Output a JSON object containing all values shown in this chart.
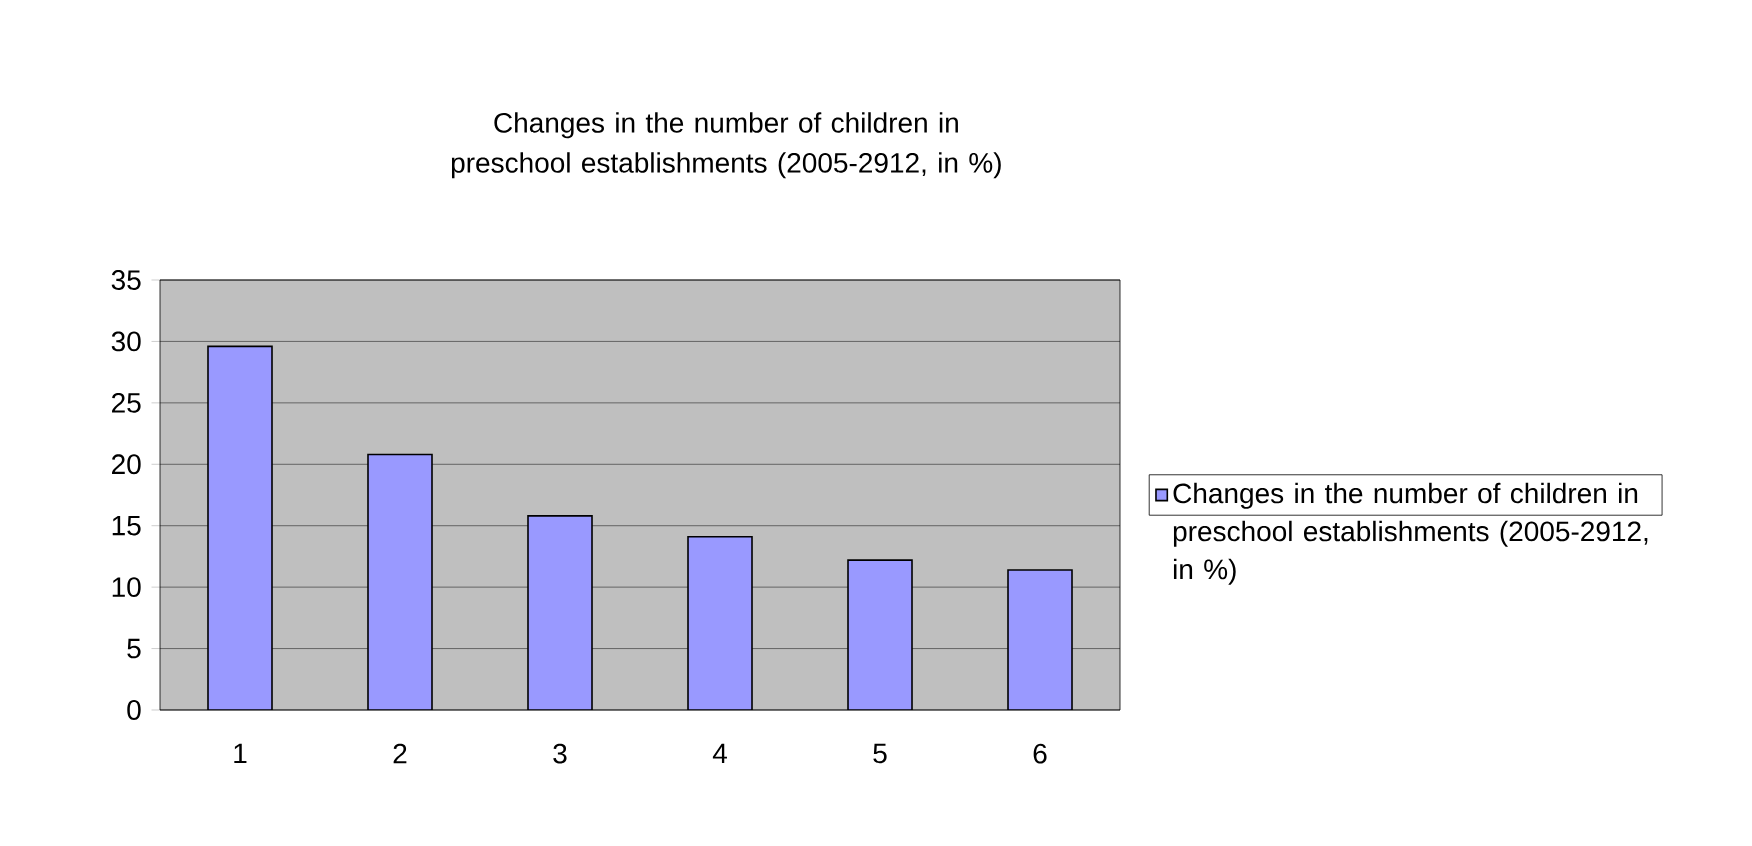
{
  "chart_data": {
    "type": "bar",
    "title": "Changes in the number of children in preschool establishments (2005-2912, in %)",
    "categories": [
      "1",
      "2",
      "3",
      "4",
      "5",
      "6"
    ],
    "series": [
      {
        "name": "Changes in the number of children in preschool establishments (2005-2912, in %)",
        "color": "#9999ff",
        "values": [
          29.6,
          20.8,
          15.8,
          14.1,
          12.2,
          11.4
        ]
      }
    ],
    "ylim": [
      0,
      35
    ],
    "yticks": [
      0,
      5,
      10,
      15,
      20,
      25,
      30,
      35
    ],
    "grid": "y",
    "legend": "right"
  }
}
